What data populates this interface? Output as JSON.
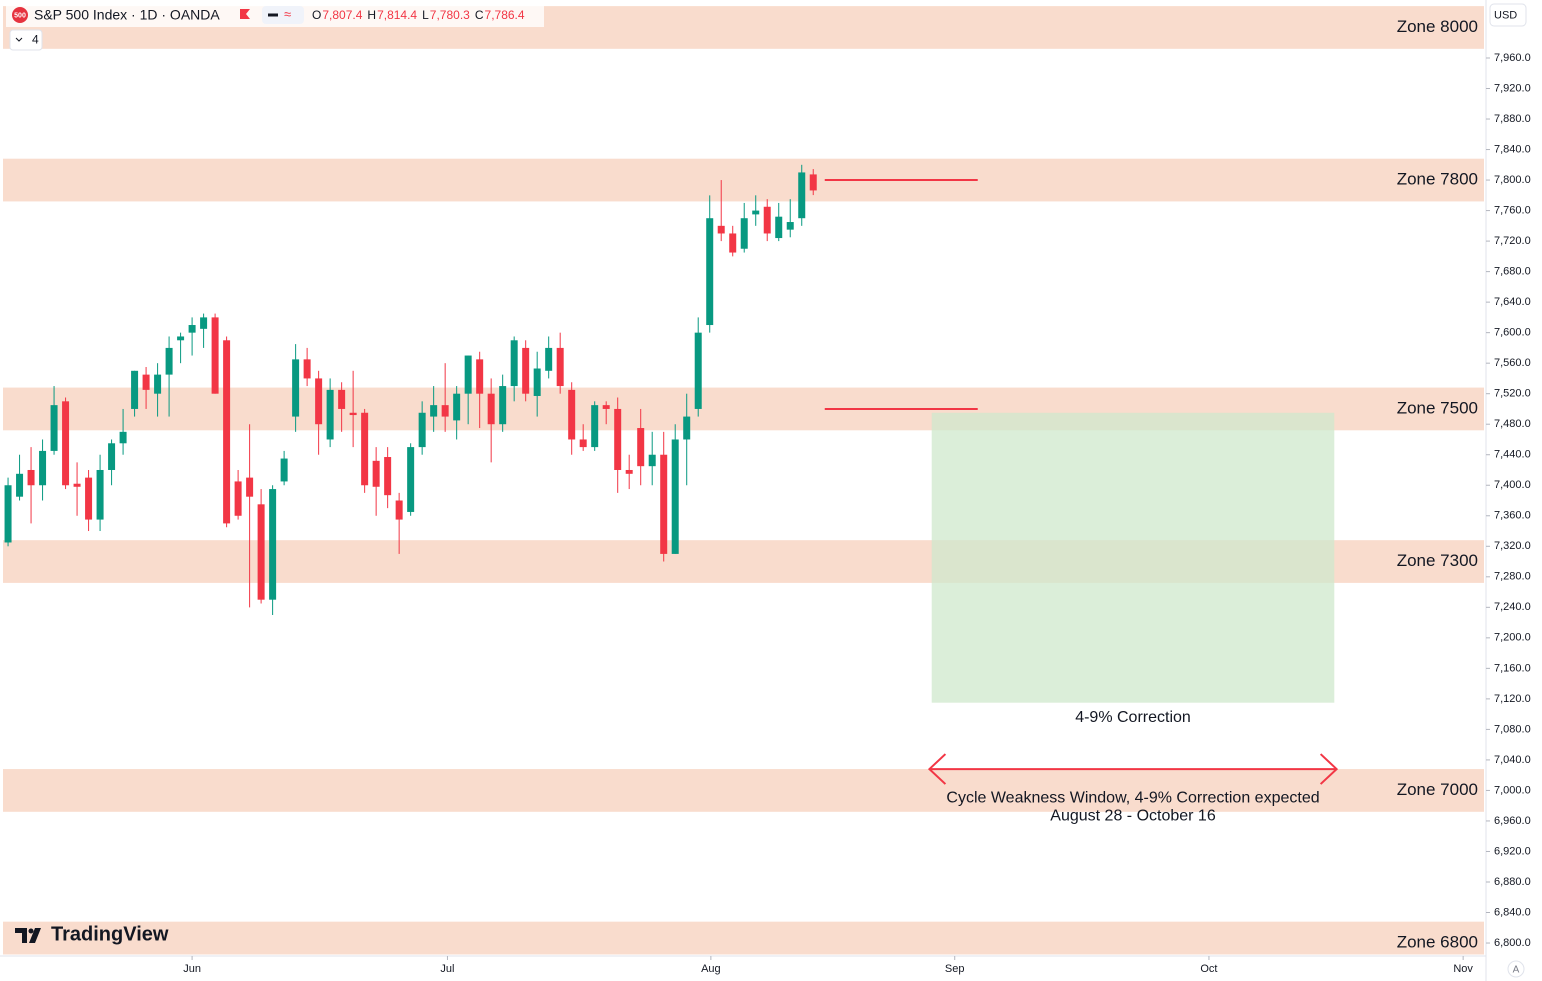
{
  "header": {
    "symbol": "S&P 500 Index · 1D · OANDA",
    "icon": "500",
    "ohlc": [
      {
        "key": "O",
        "text": "7,807.4"
      },
      {
        "key": "H",
        "text": "7,814.4"
      },
      {
        "key": "L",
        "text": "7,780.3"
      },
      {
        "key": "C",
        "text": "7,786.4"
      }
    ],
    "indicators": "4"
  },
  "currency": "USD",
  "scale_mode": "A",
  "watermark": "TradingView",
  "chart_data": {
    "type": "candlestick",
    "up_color": "#089981",
    "down_color": "#f23645",
    "open": [
      7325,
      7385,
      7420,
      7400,
      7445,
      7510,
      7402,
      7410,
      7355,
      7420,
      7455,
      7500,
      7545,
      7520,
      7545,
      7590,
      7600,
      7605,
      7620,
      7590,
      7405,
      7410,
      7375,
      7250,
      7405,
      7490,
      7565,
      7540,
      7460,
      7525,
      7495,
      7495,
      7432,
      7437,
      7380,
      7365,
      7450,
      7490,
      7505,
      7485,
      7520,
      7565,
      7520,
      7480,
      7530,
      7580,
      7517,
      7550,
      7580,
      7525,
      7460,
      7450,
      7505,
      7500,
      7420,
      7475,
      7425,
      7440,
      7310,
      7460,
      7500,
      7610,
      7740,
      7730,
      7710,
      7755,
      7765,
      7724,
      7735,
      7750,
      7807.4
    ],
    "high": [
      7410,
      7440,
      7450,
      7460,
      7530,
      7515,
      7430,
      7420,
      7440,
      7460,
      7500,
      7550,
      7555,
      7560,
      7595,
      7600,
      7620,
      7625,
      7625,
      7595,
      7420,
      7480,
      7395,
      7400,
      7445,
      7585,
      7580,
      7550,
      7540,
      7535,
      7550,
      7500,
      7450,
      7450,
      7390,
      7455,
      7510,
      7530,
      7560,
      7530,
      7570,
      7575,
      7540,
      7545,
      7595,
      7590,
      7575,
      7595,
      7600,
      7535,
      7480,
      7510,
      7510,
      7515,
      7440,
      7500,
      7470,
      7470,
      7480,
      7520,
      7620,
      7780,
      7800,
      7740,
      7770,
      7780,
      7775,
      7770,
      7775,
      7820,
      7814.4
    ],
    "low": [
      7320,
      7380,
      7350,
      7380,
      7440,
      7395,
      7360,
      7340,
      7340,
      7400,
      7440,
      7490,
      7500,
      7490,
      7490,
      7560,
      7570,
      7580,
      7520,
      7345,
      7355,
      7240,
      7245,
      7230,
      7400,
      7470,
      7530,
      7440,
      7450,
      7470,
      7450,
      7390,
      7360,
      7370,
      7310,
      7360,
      7440,
      7470,
      7470,
      7460,
      7480,
      7475,
      7430,
      7470,
      7510,
      7510,
      7490,
      7540,
      7520,
      7440,
      7445,
      7445,
      7480,
      7390,
      7395,
      7400,
      7400,
      7300,
      7310,
      7400,
      7490,
      7600,
      7720,
      7700,
      7705,
      7740,
      7720,
      7720,
      7725,
      7740,
      7780.3
    ],
    "close": [
      7400,
      7415,
      7400,
      7445,
      7505,
      7400,
      7398,
      7355,
      7420,
      7455,
      7470,
      7550,
      7525,
      7545,
      7580,
      7595,
      7610,
      7620,
      7520,
      7350,
      7360,
      7385,
      7250,
      7395,
      7435,
      7565,
      7540,
      7480,
      7525,
      7500,
      7492,
      7400,
      7398,
      7387,
      7355,
      7450,
      7495,
      7505,
      7490,
      7520,
      7570,
      7520,
      7480,
      7530,
      7590,
      7520,
      7553,
      7580,
      7530,
      7460,
      7450,
      7505,
      7500,
      7420,
      7415,
      7425,
      7440,
      7310,
      7460,
      7490,
      7600,
      7750,
      7730,
      7705,
      7750,
      7760,
      7730,
      7752,
      7745,
      7810,
      7786.4
    ],
    "xlim": [
      -0.7,
      128.4
    ],
    "xticks": [
      {
        "value": 16,
        "label": "Jun"
      },
      {
        "value": 38.2,
        "label": "Jul"
      },
      {
        "value": 61.1,
        "label": "Aug"
      },
      {
        "value": 82.3,
        "label": "Sep"
      },
      {
        "value": 104.4,
        "label": "Oct"
      },
      {
        "value": 126.5,
        "label": "Nov"
      }
    ],
    "ylim": [
      6783,
      8036
    ],
    "yticks": [
      {
        "value": 6800,
        "label": "6,800.0"
      },
      {
        "value": 6840,
        "label": "6,840.0"
      },
      {
        "value": 6880,
        "label": "6,880.0"
      },
      {
        "value": 6920,
        "label": "6,920.0"
      },
      {
        "value": 6960,
        "label": "6,960.0"
      },
      {
        "value": 7000,
        "label": "7,000.0"
      },
      {
        "value": 7040,
        "label": "7,040.0"
      },
      {
        "value": 7080,
        "label": "7,080.0"
      },
      {
        "value": 7120,
        "label": "7,120.0"
      },
      {
        "value": 7160,
        "label": "7,160.0"
      },
      {
        "value": 7200,
        "label": "7,200.0"
      },
      {
        "value": 7240,
        "label": "7,240.0"
      },
      {
        "value": 7280,
        "label": "7,280.0"
      },
      {
        "value": 7320,
        "label": "7,320.0"
      },
      {
        "value": 7360,
        "label": "7,360.0"
      },
      {
        "value": 7400,
        "label": "7,400.0"
      },
      {
        "value": 7440,
        "label": "7,440.0"
      },
      {
        "value": 7480,
        "label": "7,480.0"
      },
      {
        "value": 7520,
        "label": "7,520.0"
      },
      {
        "value": 7560,
        "label": "7,560.0"
      },
      {
        "value": 7600,
        "label": "7,600.0"
      },
      {
        "value": 7640,
        "label": "7,640.0"
      },
      {
        "value": 7680,
        "label": "7,680.0"
      },
      {
        "value": 7720,
        "label": "7,720.0"
      },
      {
        "value": 7760,
        "label": "7,760.0"
      },
      {
        "value": 7800,
        "label": "7,800.0"
      },
      {
        "value": 7840,
        "label": "7,840.0"
      },
      {
        "value": 7880,
        "label": "7,880.0"
      },
      {
        "value": 7920,
        "label": "7,920.0"
      },
      {
        "value": 7960,
        "label": "7,960.0"
      }
    ],
    "zones": [
      {
        "label": "Zone 8000",
        "low": 7972,
        "high": 8028,
        "level": 8000
      },
      {
        "label": "Zone 7800",
        "low": 7772,
        "high": 7828,
        "level": 7800
      },
      {
        "label": "Zone 7500",
        "low": 7472,
        "high": 7528,
        "level": 7500
      },
      {
        "label": "Zone 7300",
        "low": 7272,
        "high": 7328,
        "level": 7300
      },
      {
        "label": "Zone 7000",
        "low": 6972,
        "high": 7028,
        "level": 7000
      },
      {
        "label": "Zone 6800",
        "low": 6785,
        "high": 6828,
        "level": 6800
      }
    ],
    "zone_color": "#f9dccd",
    "lines": [
      {
        "y": 7800,
        "x": [
          71,
          84.3
        ]
      },
      {
        "y": 7500,
        "x": [
          71,
          84.3
        ]
      }
    ],
    "line_color": "#f23645",
    "box": {
      "x": [
        80.3,
        115.3
      ],
      "y": [
        7115,
        7495
      ],
      "color": "#cfe8cc",
      "label": "4-9% Correction",
      "label_y": 7095
    },
    "arrow": {
      "x": [
        80.1,
        115.5
      ],
      "y": 7028,
      "color": "#f23645",
      "label": "Cycle Weakness Window, 4-9% Correction expected",
      "label2": "August 28 - October 16",
      "label_y": 6990,
      "label2_y": 6966
    }
  }
}
